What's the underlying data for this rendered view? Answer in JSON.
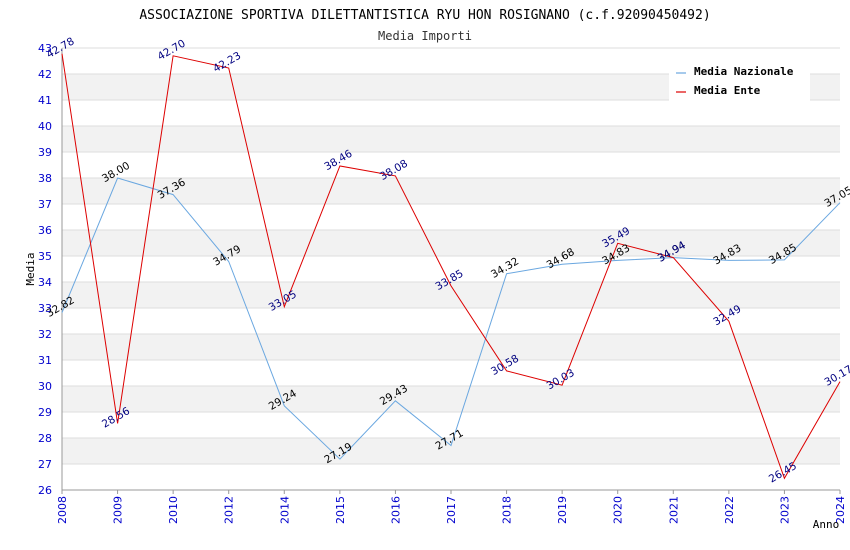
{
  "chart_data": {
    "type": "line",
    "title": "ASSOCIAZIONE SPORTIVA DILETTANTISTICA RYU HON ROSIGNANO (c.f.92090450492)",
    "subtitle": "Media Importi",
    "xlabel": "Anno",
    "ylabel": "Media",
    "ylim": [
      26,
      43
    ],
    "yticks": [
      26,
      27,
      28,
      29,
      30,
      31,
      32,
      33,
      34,
      35,
      36,
      37,
      38,
      39,
      40,
      41,
      42,
      43
    ],
    "grid": true,
    "legend_position": "top-right",
    "categories": [
      "2008",
      "2009",
      "2010",
      "2012",
      "2014",
      "2015",
      "2016",
      "2017",
      "2018",
      "2019",
      "2020",
      "2021",
      "2022",
      "2023",
      "2024"
    ],
    "series": [
      {
        "name": "Media Nazionale",
        "color": "#6aa7e0",
        "label_color": "#000000",
        "values": [
          32.82,
          38.0,
          37.36,
          34.79,
          29.24,
          27.19,
          29.43,
          27.71,
          34.32,
          34.68,
          34.83,
          34.94,
          34.83,
          34.85,
          37.05
        ],
        "labels": [
          "32.82",
          "38.00",
          "37.36",
          "34.79",
          "29.24",
          "27.19",
          "29.43",
          "27.71",
          "34.32",
          "34.68",
          "34.83",
          "34.94",
          "34.83",
          "34.85",
          "37.05"
        ]
      },
      {
        "name": "Media Ente",
        "color": "#dd0000",
        "label_color": "#000080",
        "values": [
          42.78,
          28.56,
          42.7,
          42.23,
          33.05,
          38.46,
          38.08,
          33.85,
          30.58,
          30.03,
          35.49,
          34.94,
          32.49,
          26.45,
          30.17
        ],
        "labels": [
          "42.78",
          "28.56",
          "42.70",
          "42.23",
          "33.05",
          "38.46",
          "38.08",
          "33.85",
          "30.58",
          "30.03",
          "35.49",
          "34.94",
          "32.49",
          "26.45",
          "30.17"
        ]
      }
    ]
  }
}
